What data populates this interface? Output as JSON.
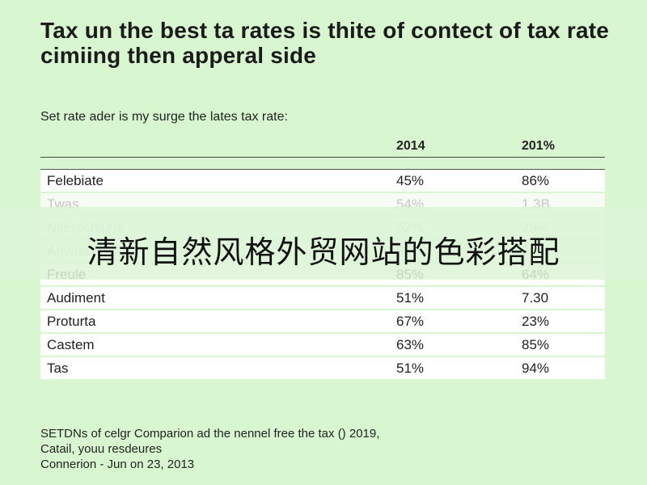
{
  "title": "Tax un the best ta rates is thite of contect of tax rate cimiing then apperal side",
  "subtitle": "Set rate ader is my surge the lates tax rate:",
  "table": {
    "headers": [
      "",
      "2014",
      "201%"
    ],
    "rows": [
      {
        "name": "Felebiate",
        "a": "45%",
        "b": "86%"
      },
      {
        "name": "Twas",
        "a": "54%",
        "b": "1.3B"
      },
      {
        "name": "Niterechiune",
        "a": "52%",
        "b": "29%"
      },
      {
        "name": "Arivata",
        "a": "35%",
        "b": "74%"
      },
      {
        "name": "Freule",
        "a": "85%",
        "b": "64%"
      },
      {
        "name": "Audiment",
        "a": "51%",
        "b": "7.30"
      },
      {
        "name": "Proturta",
        "a": "67%",
        "b": "23%"
      },
      {
        "name": "Castem",
        "a": "63%",
        "b": "85%"
      },
      {
        "name": "Tas",
        "a": "51%",
        "b": "94%"
      }
    ]
  },
  "overlay_text": "清新自然风格外贸网站的色彩搭配",
  "footnote": [
    "SETDNs of celgr Comparion ad the nennel free the tax () 2019,",
    "Catail, youu resdeures",
    "Connerion - Jun on 23, 2013"
  ]
}
